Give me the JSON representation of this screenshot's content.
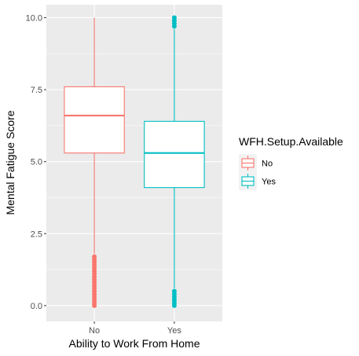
{
  "chart_data": {
    "type": "boxplot",
    "xlabel": "Ability to Work From Home",
    "ylabel": "Mental Fatigue Score",
    "categories": [
      "No",
      "Yes"
    ],
    "yticks": [
      "0.0",
      "2.5",
      "5.0",
      "7.5",
      "10.0"
    ],
    "ylim": [
      -0.55,
      10.45
    ],
    "grid": true,
    "legend": {
      "title": "WFH.Setup.Available",
      "placement": "right",
      "entries": [
        "No",
        "Yes"
      ]
    },
    "series": [
      {
        "name": "No",
        "category": "No",
        "color": "#F8766D",
        "min": 1.8,
        "q1": 5.3,
        "median": 6.6,
        "q3": 7.6,
        "max": 10.0,
        "outliers": [
          0.0,
          0.1,
          0.2,
          0.3,
          0.4,
          0.5,
          0.6,
          0.7,
          0.8,
          0.9,
          1.0,
          1.1,
          1.2,
          1.3,
          1.4,
          1.5,
          1.6,
          1.7
        ]
      },
      {
        "name": "Yes",
        "category": "Yes",
        "color": "#00BFC4",
        "min": 0.6,
        "q1": 4.1,
        "median": 5.3,
        "q3": 6.4,
        "max": 9.6,
        "outliers": [
          0.0,
          0.1,
          0.2,
          0.3,
          0.4,
          0.5,
          9.7,
          9.8,
          9.9,
          10.0
        ]
      }
    ]
  }
}
